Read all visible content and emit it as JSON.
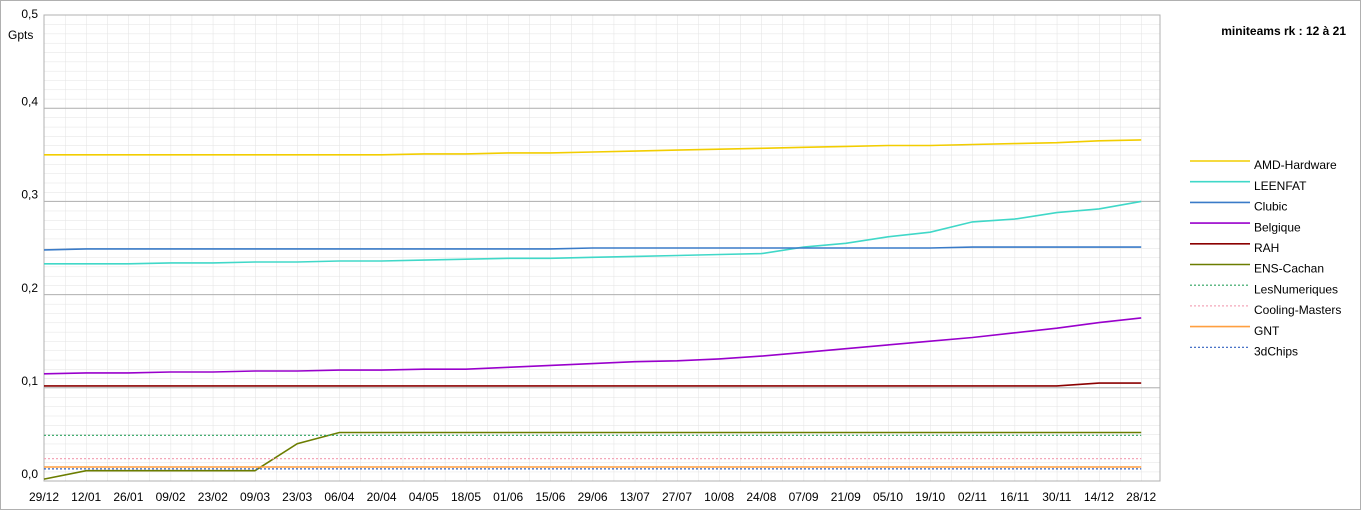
{
  "chart_data": {
    "type": "line",
    "title": "miniteams rk : 12 à 21",
    "y_label": "Gpts",
    "categories": [
      "29/12",
      "12/01",
      "26/01",
      "09/02",
      "23/02",
      "09/03",
      "23/03",
      "06/04",
      "20/04",
      "04/05",
      "18/05",
      "01/06",
      "15/06",
      "29/06",
      "13/07",
      "27/07",
      "10/08",
      "24/08",
      "07/09",
      "21/09",
      "05/10",
      "19/10",
      "02/11",
      "16/11",
      "30/11",
      "14/12",
      "28/12"
    ],
    "ylim": [
      0,
      0.5
    ],
    "yticks": [
      {
        "value": 0,
        "label": "0,0"
      },
      {
        "value": 0.1,
        "label": "0,1"
      },
      {
        "value": 0.2,
        "label": "0,2"
      },
      {
        "value": 0.3,
        "label": "0,3"
      },
      {
        "value": 0.4,
        "label": "0,4"
      },
      {
        "value": 0.5,
        "label": "0,5"
      }
    ],
    "grid": true,
    "legend": "right",
    "series": [
      {
        "name": "AMD-Hardware",
        "color": "#f2cd00",
        "line_style": "solid",
        "values": [
          0.35,
          0.35,
          0.35,
          0.35,
          0.35,
          0.35,
          0.35,
          0.35,
          0.35,
          0.351,
          0.351,
          0.352,
          0.352,
          0.353,
          0.354,
          0.355,
          0.356,
          0.357,
          0.358,
          0.359,
          0.36,
          0.36,
          0.361,
          0.362,
          0.363,
          0.365,
          0.366
        ]
      },
      {
        "name": "LEENFAT",
        "color": "#40d8c8",
        "line_style": "solid",
        "values": [
          0.233,
          0.233,
          0.233,
          0.234,
          0.234,
          0.235,
          0.235,
          0.236,
          0.236,
          0.237,
          0.238,
          0.239,
          0.239,
          0.24,
          0.241,
          0.242,
          0.243,
          0.244,
          0.251,
          0.255,
          0.262,
          0.267,
          0.278,
          0.281,
          0.288,
          0.292,
          0.3
        ]
      },
      {
        "name": "Clubic",
        "color": "#3a7bc8",
        "line_style": "solid",
        "values": [
          0.248,
          0.249,
          0.249,
          0.249,
          0.249,
          0.249,
          0.249,
          0.249,
          0.249,
          0.249,
          0.249,
          0.249,
          0.249,
          0.25,
          0.25,
          0.25,
          0.25,
          0.25,
          0.25,
          0.25,
          0.25,
          0.25,
          0.251,
          0.251,
          0.251,
          0.251,
          0.251
        ]
      },
      {
        "name": "Belgique",
        "color": "#9900cc",
        "line_style": "solid",
        "values": [
          0.115,
          0.116,
          0.116,
          0.117,
          0.117,
          0.118,
          0.118,
          0.119,
          0.119,
          0.12,
          0.12,
          0.122,
          0.124,
          0.126,
          0.128,
          0.129,
          0.131,
          0.134,
          0.138,
          0.142,
          0.146,
          0.15,
          0.154,
          0.159,
          0.164,
          0.17,
          0.175
        ]
      },
      {
        "name": "RAH",
        "color": "#8b0000",
        "line_style": "solid",
        "values": [
          0.102,
          0.102,
          0.102,
          0.102,
          0.102,
          0.102,
          0.102,
          0.102,
          0.102,
          0.102,
          0.102,
          0.102,
          0.102,
          0.102,
          0.102,
          0.102,
          0.102,
          0.102,
          0.102,
          0.102,
          0.102,
          0.102,
          0.102,
          0.102,
          0.102,
          0.105,
          0.105
        ]
      },
      {
        "name": "ENS-Cachan",
        "color": "#6b7d00",
        "line_style": "solid",
        "values": [
          0.002,
          0.011,
          0.011,
          0.011,
          0.011,
          0.011,
          0.04,
          0.052,
          0.052,
          0.052,
          0.052,
          0.052,
          0.052,
          0.052,
          0.052,
          0.052,
          0.052,
          0.052,
          0.052,
          0.052,
          0.052,
          0.052,
          0.052,
          0.052,
          0.052,
          0.052,
          0.052
        ]
      },
      {
        "name": "LesNumeriques",
        "color": "#2ca25f",
        "line_style": "dotted",
        "values": [
          0.049,
          0.049,
          0.049,
          0.049,
          0.049,
          0.049,
          0.049,
          0.049,
          0.049,
          0.049,
          0.049,
          0.049,
          0.049,
          0.049,
          0.049,
          0.049,
          0.049,
          0.049,
          0.049,
          0.049,
          0.049,
          0.049,
          0.049,
          0.049,
          0.049,
          0.049,
          0.049
        ]
      },
      {
        "name": "Cooling-Masters",
        "color": "#f4a6b8",
        "line_style": "dotted",
        "values": [
          0.024,
          0.024,
          0.024,
          0.024,
          0.024,
          0.024,
          0.024,
          0.024,
          0.024,
          0.024,
          0.024,
          0.024,
          0.024,
          0.024,
          0.024,
          0.024,
          0.024,
          0.024,
          0.024,
          0.024,
          0.024,
          0.024,
          0.024,
          0.024,
          0.024,
          0.024,
          0.024
        ]
      },
      {
        "name": "GNT",
        "color": "#ff9f40",
        "line_style": "solid",
        "values": [
          0.015,
          0.015,
          0.015,
          0.015,
          0.015,
          0.015,
          0.015,
          0.015,
          0.015,
          0.015,
          0.015,
          0.015,
          0.015,
          0.015,
          0.015,
          0.015,
          0.015,
          0.015,
          0.015,
          0.015,
          0.015,
          0.015,
          0.015,
          0.015,
          0.015,
          0.015,
          0.015
        ]
      },
      {
        "name": "3dChips",
        "color": "#3060c0",
        "line_style": "dotted",
        "values": [
          0.013,
          0.013,
          0.013,
          0.013,
          0.013,
          0.013,
          0.013,
          0.013,
          0.013,
          0.013,
          0.013,
          0.013,
          0.013,
          0.013,
          0.013,
          0.013,
          0.013,
          0.013,
          0.013,
          0.013,
          0.013,
          0.013,
          0.013,
          0.013,
          0.013,
          0.013,
          0.013
        ]
      }
    ]
  }
}
